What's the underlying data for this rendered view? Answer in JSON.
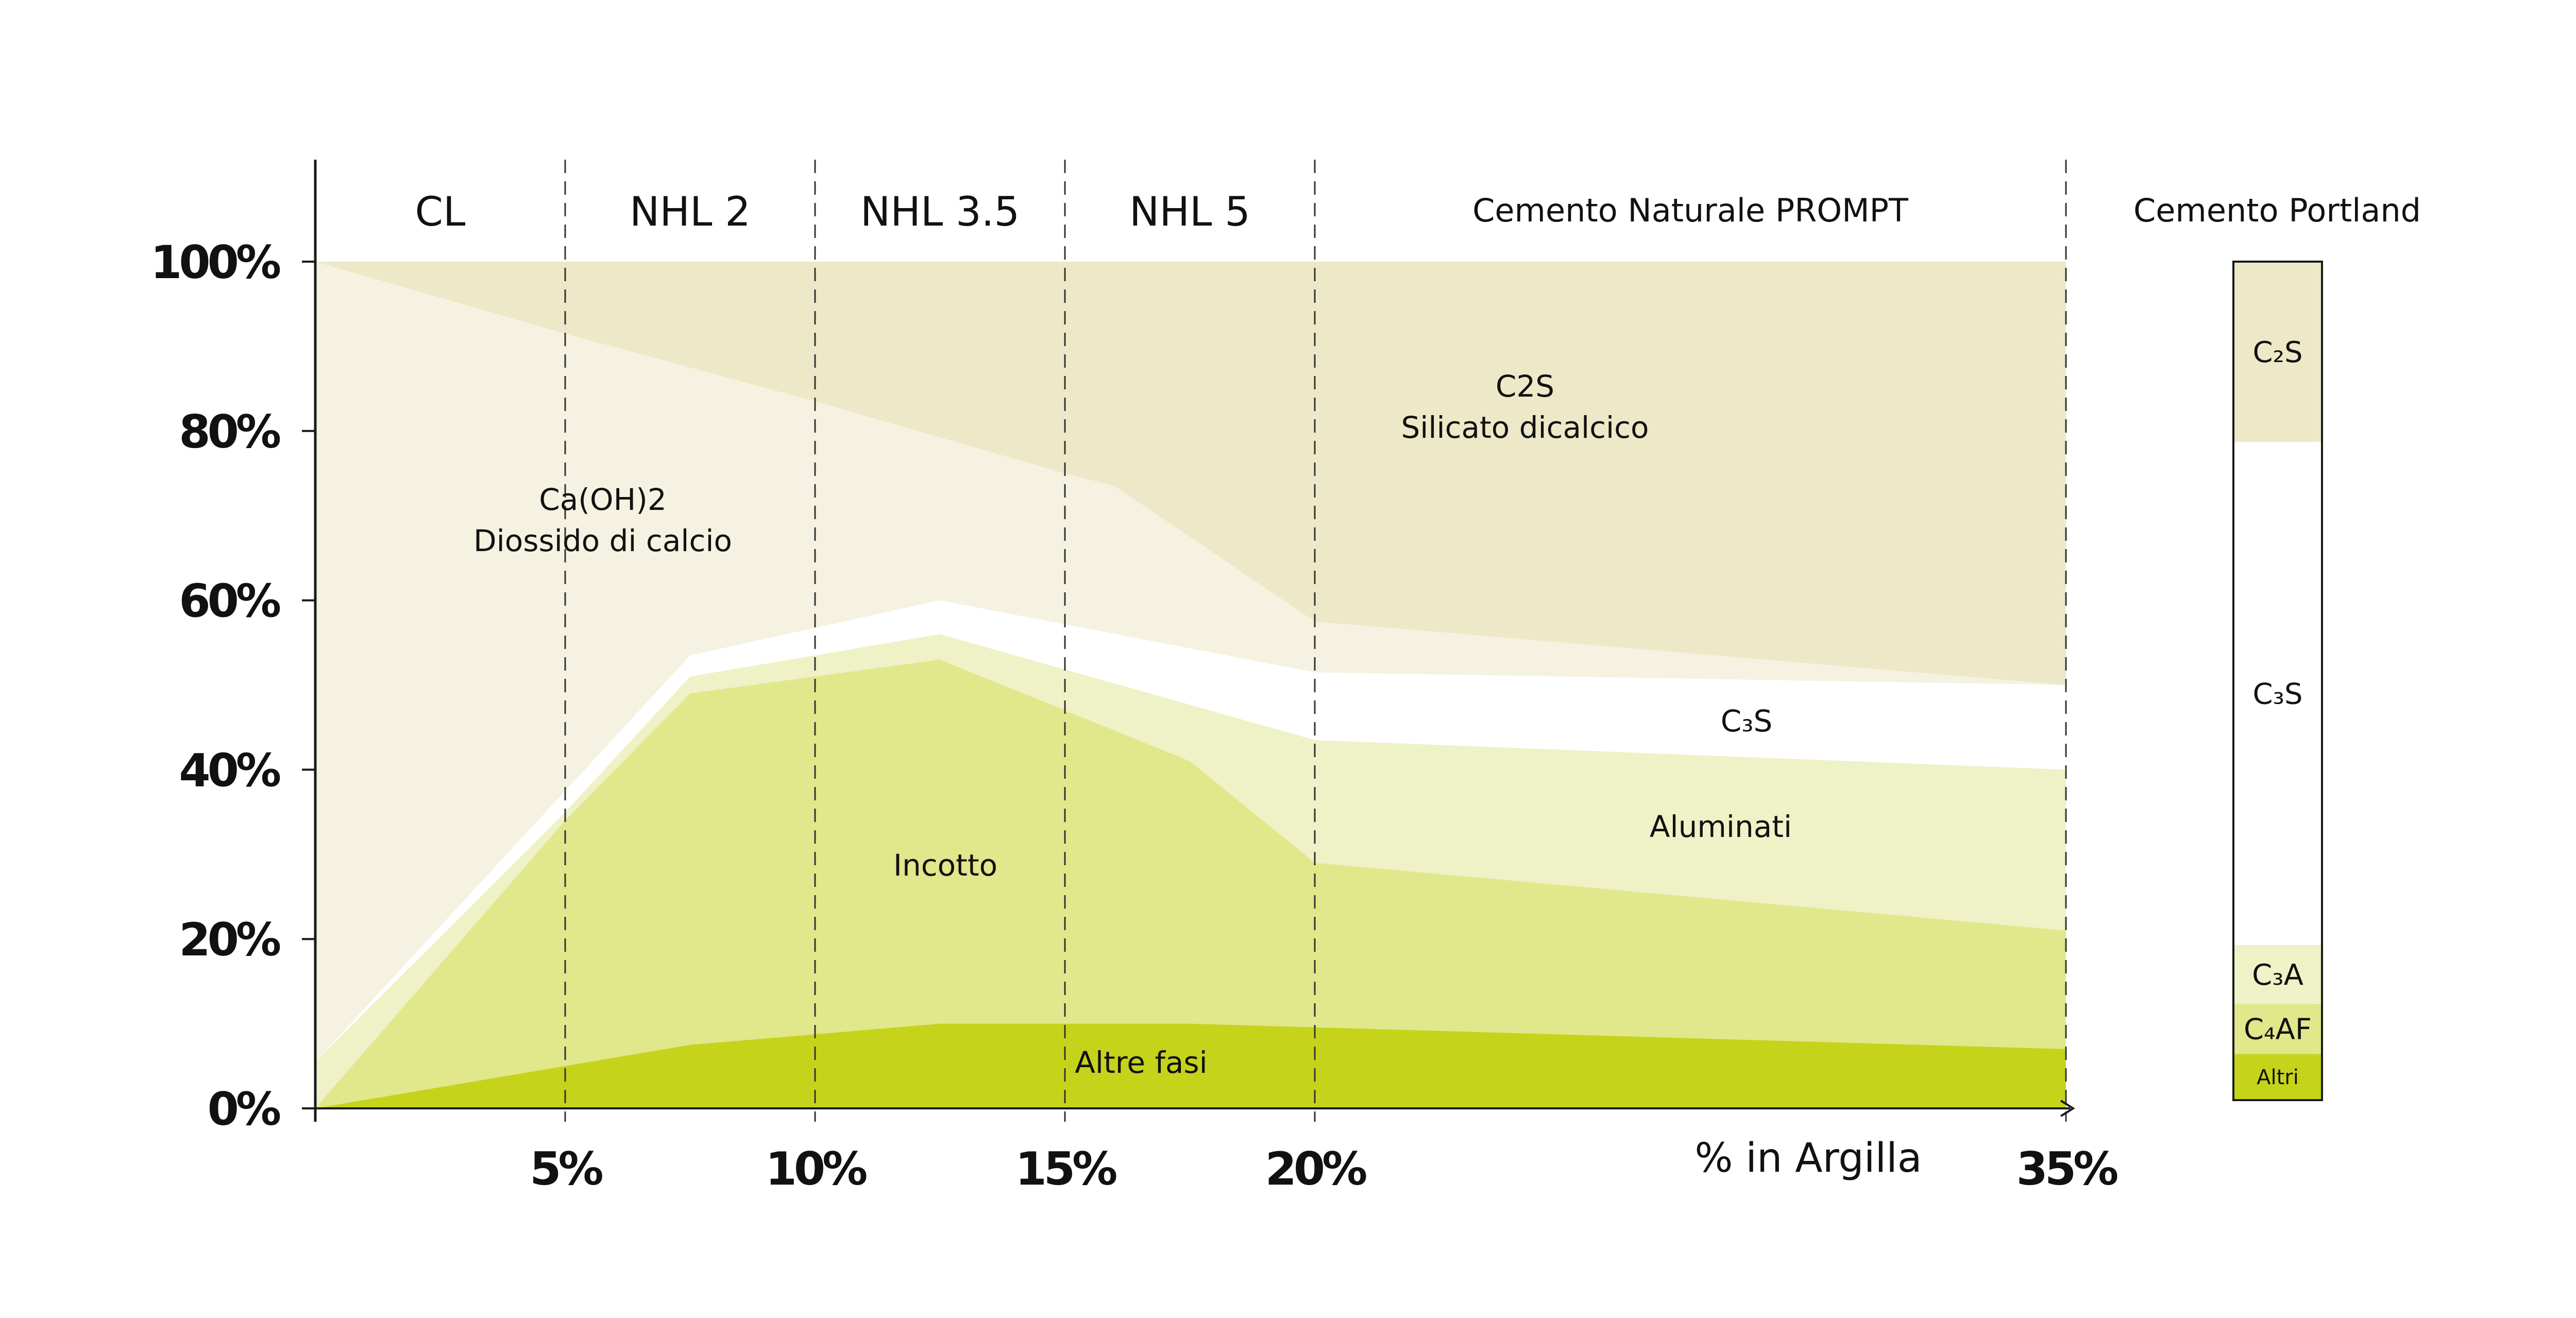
{
  "chart_data": {
    "type": "area",
    "stacked": true,
    "x_axis": {
      "label": "% in Argilla",
      "range": [
        0,
        35
      ],
      "ticks": [
        "5%",
        "10%",
        "15%",
        "20%",
        "35%"
      ],
      "tick_values": [
        5,
        10,
        15,
        20,
        35
      ],
      "scale_break": "linear 0-20, compressed 20-35"
    },
    "y_axis": {
      "range": [
        0,
        100
      ],
      "ticks": [
        "0%",
        "20%",
        "40%",
        "60%",
        "80%",
        "100%"
      ],
      "tick_values": [
        0,
        20,
        40,
        60,
        80,
        100
      ]
    },
    "zones": [
      {
        "label": "CL",
        "from": 0,
        "to": 5
      },
      {
        "label": "NHL 2",
        "from": 5,
        "to": 10
      },
      {
        "label": "NHL 3.5",
        "from": 10,
        "to": 15
      },
      {
        "label": "NHL 5",
        "from": 15,
        "to": 20
      },
      {
        "label": "Cemento Naturale PROMPT",
        "from": 20,
        "to": 35
      }
    ],
    "series": [
      {
        "name": "Altre fasi",
        "color": "#c5d41b",
        "points": [
          [
            0,
            0
          ],
          [
            5,
            5
          ],
          [
            7.5,
            7.5
          ],
          [
            12.5,
            10
          ],
          [
            17.5,
            10
          ],
          [
            35,
            7
          ]
        ]
      },
      {
        "name": "Incotto",
        "color": "#e1e78b",
        "points": [
          [
            0,
            0
          ],
          [
            5,
            34
          ],
          [
            7.5,
            49
          ],
          [
            12.5,
            53
          ],
          [
            17.5,
            41
          ],
          [
            20,
            29
          ],
          [
            35,
            21
          ]
        ]
      },
      {
        "name": "Aluminati",
        "color": "#eef2c6",
        "points": [
          [
            0,
            5.5
          ],
          [
            5,
            35
          ],
          [
            7.5,
            51
          ],
          [
            12.5,
            56
          ],
          [
            20,
            43.5
          ],
          [
            35,
            40
          ]
        ]
      },
      {
        "name": "C₃S",
        "color": "#ffffff",
        "points": [
          [
            0,
            5.5
          ],
          [
            5,
            37.5
          ],
          [
            7.5,
            53.5
          ],
          [
            12.5,
            60
          ],
          [
            20,
            51.5
          ],
          [
            35,
            50
          ]
        ]
      },
      {
        "name": "Ca(OH)2 Diossido di calcio",
        "color": "#f5f2e1",
        "points": [
          [
            0,
            100
          ],
          [
            5,
            91.5
          ],
          [
            10,
            83.5
          ],
          [
            15,
            75
          ],
          [
            16,
            73.5
          ],
          [
            20,
            57.5
          ],
          [
            35,
            50
          ]
        ]
      },
      {
        "name": "C2S Silicato dicalcico",
        "color": "#ede8c7",
        "points": [
          [
            0,
            100
          ],
          [
            35,
            100
          ]
        ]
      }
    ],
    "area_labels": {
      "c2s_line1": "C2S",
      "c2s_line2": "Silicato dicalcico",
      "caoh_line1": "Ca(OH)2",
      "caoh_line2": "Diossido di calcio",
      "c3s": "C₃S",
      "aluminati": "Aluminati",
      "incotto": "Incotto",
      "altre": "Altre fasi"
    },
    "portland": {
      "title": "Cemento Portland",
      "segments": [
        {
          "label": "Altri",
          "from": 0,
          "to": 5.5,
          "color": "#c5d41b"
        },
        {
          "label": "C₄AF",
          "from": 5.5,
          "to": 11.5,
          "color": "#e1e78b"
        },
        {
          "label": "C₃A",
          "from": 11.5,
          "to": 18.5,
          "color": "#eef2c6"
        },
        {
          "label": "C₃S",
          "from": 18.5,
          "to": 78.5,
          "color": "#ffffff"
        },
        {
          "label": "C₂S",
          "from": 78.5,
          "to": 100,
          "color": "#ede8c7"
        }
      ]
    }
  }
}
